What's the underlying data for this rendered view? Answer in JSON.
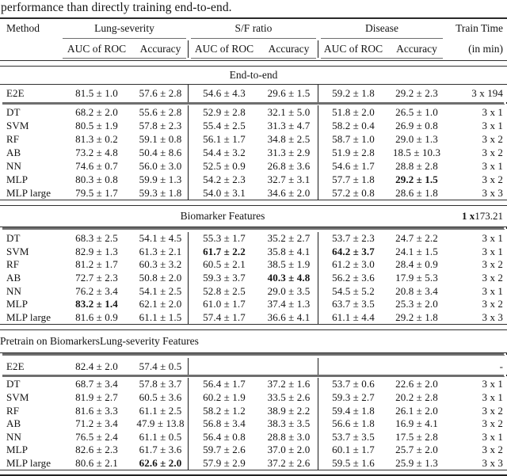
{
  "caption": "performance than directly training end-to-end.",
  "header": {
    "method": "Method",
    "groups": [
      "Lung-severity",
      "S/F ratio",
      "Disease"
    ],
    "train_time": "Train Time",
    "auc": "AUC of ROC",
    "acc": "Accuracy",
    "in_min": "(in min)"
  },
  "sections": [
    {
      "title": "End-to-end",
      "lead": {
        "method": "E2E",
        "values": [
          "81.5 ± 1.0",
          "57.6 ± 2.8",
          "54.6 ± 4.3",
          "29.6 ± 1.5",
          "59.2 ± 1.8",
          "29.2 ± 2.3"
        ],
        "train": "3 x 194",
        "bold": []
      },
      "rows": [
        {
          "method": "DT",
          "values": [
            "68.2 ± 2.0",
            "55.6 ± 2.8",
            "52.9 ± 2.8",
            "32.1 ± 5.0",
            "51.8 ± 2.0",
            "26.5 ± 1.0"
          ],
          "train": "3 x 1",
          "bold": []
        },
        {
          "method": "SVM",
          "values": [
            "80.5 ± 1.9",
            "57.8 ± 2.3",
            "55.4 ± 2.5",
            "31.3 ± 4.7",
            "58.2 ± 0.4",
            "26.9 ± 0.8"
          ],
          "train": "3 x 1",
          "bold": []
        },
        {
          "method": "RF",
          "values": [
            "81.3 ± 0.2",
            "59.1 ± 0.8",
            "56.1 ± 1.7",
            "34.8 ± 2.5",
            "58.7 ± 1.0",
            "29.0 ± 1.3"
          ],
          "train": "3 x 2",
          "bold": []
        },
        {
          "method": "AB",
          "values": [
            "73.2 ± 4.8",
            "50.4 ± 8.6",
            "54.4 ± 3.2",
            "31.3 ± 2.9",
            "51.9 ± 2.8",
            "18.5 ± 10.3"
          ],
          "train": "3 x 2",
          "bold": []
        },
        {
          "method": "NN",
          "values": [
            "74.6 ± 0.7",
            "56.0 ± 3.0",
            "52.5 ± 0.9",
            "26.8 ± 3.6",
            "54.6 ± 1.7",
            "28.8 ± 2.8"
          ],
          "train": "3 x 1",
          "bold": []
        },
        {
          "method": "MLP",
          "values": [
            "80.3 ± 0.8",
            "59.9 ± 1.3",
            "54.2 ± 2.3",
            "32.7 ± 3.1",
            "57.7 ± 1.8",
            "29.2 ± 1.5"
          ],
          "train": "3 x 2",
          "bold": [
            5
          ]
        },
        {
          "method": "MLP large",
          "values": [
            "79.5 ± 1.7",
            "59.3 ± 1.8",
            "54.0 ± 3.1",
            "34.6 ± 2.0",
            "57.2 ± 0.8",
            "28.6 ± 1.8"
          ],
          "train": "3 x 3",
          "bold": []
        }
      ]
    },
    {
      "title": "Biomarker Features",
      "time_bold": "1 x",
      "time_rest": " 173.21",
      "rows": [
        {
          "method": "DT",
          "values": [
            "68.3 ± 2.5",
            "54.1 ± 4.5",
            "55.3 ± 1.7",
            "35.2 ± 2.7",
            "53.7 ± 2.3",
            "24.7 ± 2.2"
          ],
          "train": "3 x 1",
          "bold": []
        },
        {
          "method": "SVM",
          "values": [
            "82.9 ± 1.3",
            "61.3 ± 2.1",
            "61.7 ± 2.2",
            "35.8 ± 4.1",
            "64.2 ± 3.7",
            "24.1 ± 1.5"
          ],
          "train": "3 x 1",
          "bold": [
            2,
            4
          ]
        },
        {
          "method": "RF",
          "values": [
            "81.2 ± 1.7",
            "60.3 ± 3.2",
            "60.5 ± 2.1",
            "38.5 ± 1.9",
            "61.2 ± 3.0",
            "28.4 ± 0.9"
          ],
          "train": "3 x 2",
          "bold": []
        },
        {
          "method": "AB",
          "values": [
            "72.7 ± 2.3",
            "50.8 ± 2.0",
            "59.3 ± 3.7",
            "40.3 ± 4.8",
            "56.2 ± 3.6",
            "17.9 ± 5.3"
          ],
          "train": "3 x 2",
          "bold": [
            3
          ]
        },
        {
          "method": "NN",
          "values": [
            "76.2 ± 3.4",
            "54.1 ± 2.5",
            "52.8 ± 2.5",
            "29.0 ± 3.5",
            "54.5 ± 5.2",
            "20.8 ± 3.4"
          ],
          "train": "3 x 1",
          "bold": []
        },
        {
          "method": "MLP",
          "values": [
            "83.2 ± 1.4",
            "62.1 ± 2.0",
            "61.0 ± 1.7",
            "37.4 ± 1.3",
            "63.7 ± 3.5",
            "25.3 ± 2.0"
          ],
          "train": "3 x 2",
          "bold": [
            0
          ]
        },
        {
          "method": "MLP large",
          "values": [
            "81.6 ± 0.9",
            "61.1 ± 1.5",
            "57.4 ± 1.7",
            "36.6 ± 4.1",
            "61.1 ± 4.4",
            "29.2 ± 1.8"
          ],
          "train": "3 x 3",
          "bold": []
        }
      ]
    },
    {
      "title_left": "Pretrain on Biomarkers",
      "title_right": "Lung-severity Features",
      "lead": {
        "method": "E2E",
        "values": [
          "82.4 ± 2.0",
          "57.4 ± 0.5",
          "",
          "",
          "",
          ""
        ],
        "train": "-",
        "bold": []
      },
      "rows": [
        {
          "method": "DT",
          "values": [
            "68.7 ± 3.4",
            "57.8 ± 3.7",
            "56.4 ± 1.7",
            "37.2 ± 1.6",
            "53.7 ± 0.6",
            "22.6 ± 2.0"
          ],
          "train": "3 x 1",
          "bold": []
        },
        {
          "method": "SVM",
          "values": [
            "81.9 ± 2.7",
            "60.5 ± 3.6",
            "60.2 ± 1.9",
            "33.5 ± 2.6",
            "59.3 ± 2.7",
            "20.2 ± 2.8"
          ],
          "train": "3 x 1",
          "bold": []
        },
        {
          "method": "RF",
          "values": [
            "81.6 ± 3.3",
            "61.1 ± 2.5",
            "58.2 ± 1.2",
            "38.9 ± 2.2",
            "59.4 ± 1.8",
            "26.1 ± 2.0"
          ],
          "train": "3 x 2",
          "bold": []
        },
        {
          "method": "AB",
          "values": [
            "71.2 ± 3.4",
            "47.9 ± 13.8",
            "56.8 ± 3.4",
            "38.3 ± 3.5",
            "56.6 ± 1.8",
            "16.9 ± 4.1"
          ],
          "train": "3 x 2",
          "bold": []
        },
        {
          "method": "NN",
          "values": [
            "76.5 ± 2.4",
            "61.1 ± 0.5",
            "56.4 ± 0.8",
            "28.8 ± 3.0",
            "53.7 ± 3.5",
            "17.5 ± 2.8"
          ],
          "train": "3 x 1",
          "bold": []
        },
        {
          "method": "MLP",
          "values": [
            "82.6 ± 2.3",
            "61.7 ± 3.6",
            "59.7 ± 2.6",
            "37.0 ± 2.0",
            "60.1 ± 1.7",
            "25.7 ± 2.0"
          ],
          "train": "3 x 2",
          "bold": []
        },
        {
          "method": "MLP large",
          "values": [
            "80.6 ± 2.1",
            "62.6 ± 2.0",
            "57.9 ± 2.9",
            "37.2 ± 2.6",
            "59.5 ± 1.6",
            "25.9 ± 1.3"
          ],
          "train": "3 x 3",
          "bold": [
            1
          ]
        }
      ]
    }
  ]
}
